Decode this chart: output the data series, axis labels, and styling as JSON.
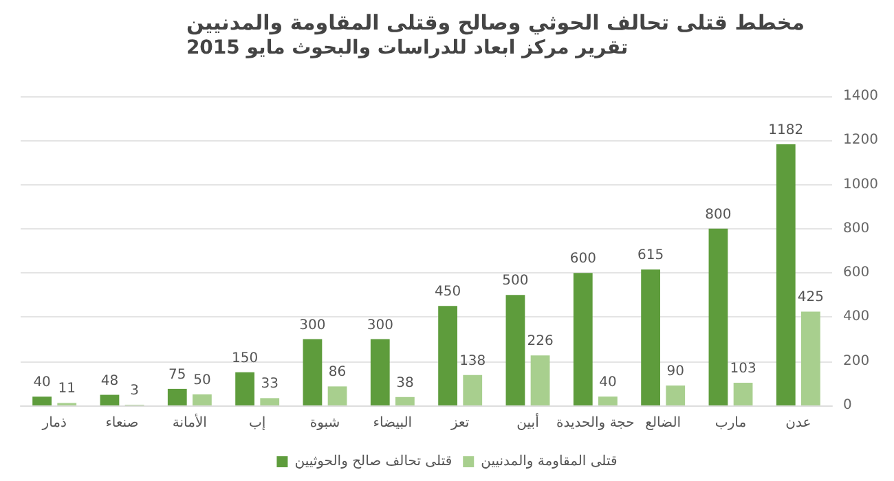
{
  "chart_data": {
    "type": "bar",
    "title": "مخطط قتلى تحالف الحوثي وصالح وقتلى المقاومة والمدنيين",
    "subtitle": "تقرير مركز ابعاد للدراسات والبحوث مايو 2015",
    "categories": [
      "ذمار",
      "صنعاء",
      "الأمانة",
      "إب",
      "شبوة",
      "البيضاء",
      "تعز",
      "أبين",
      "حجة والحديدة",
      "الضالع",
      "مارب",
      "عدن"
    ],
    "series": [
      {
        "name": "قتلى تحالف صالح والحوثيين",
        "color": "#5e9c3c",
        "values": [
          40,
          48,
          75,
          150,
          300,
          300,
          450,
          500,
          600,
          615,
          800,
          1182
        ]
      },
      {
        "name": "قتلى المقاومة والمدنيين",
        "color": "#a8cf8e",
        "values": [
          11,
          3,
          50,
          33,
          86,
          38,
          138,
          226,
          40,
          90,
          103,
          425
        ]
      }
    ],
    "ylim": [
      0,
      1400
    ],
    "yticks": [
      0,
      200,
      400,
      600,
      800,
      1000,
      1200,
      1400
    ],
    "grid": "y",
    "legend": "bottom",
    "data_labels": true
  }
}
